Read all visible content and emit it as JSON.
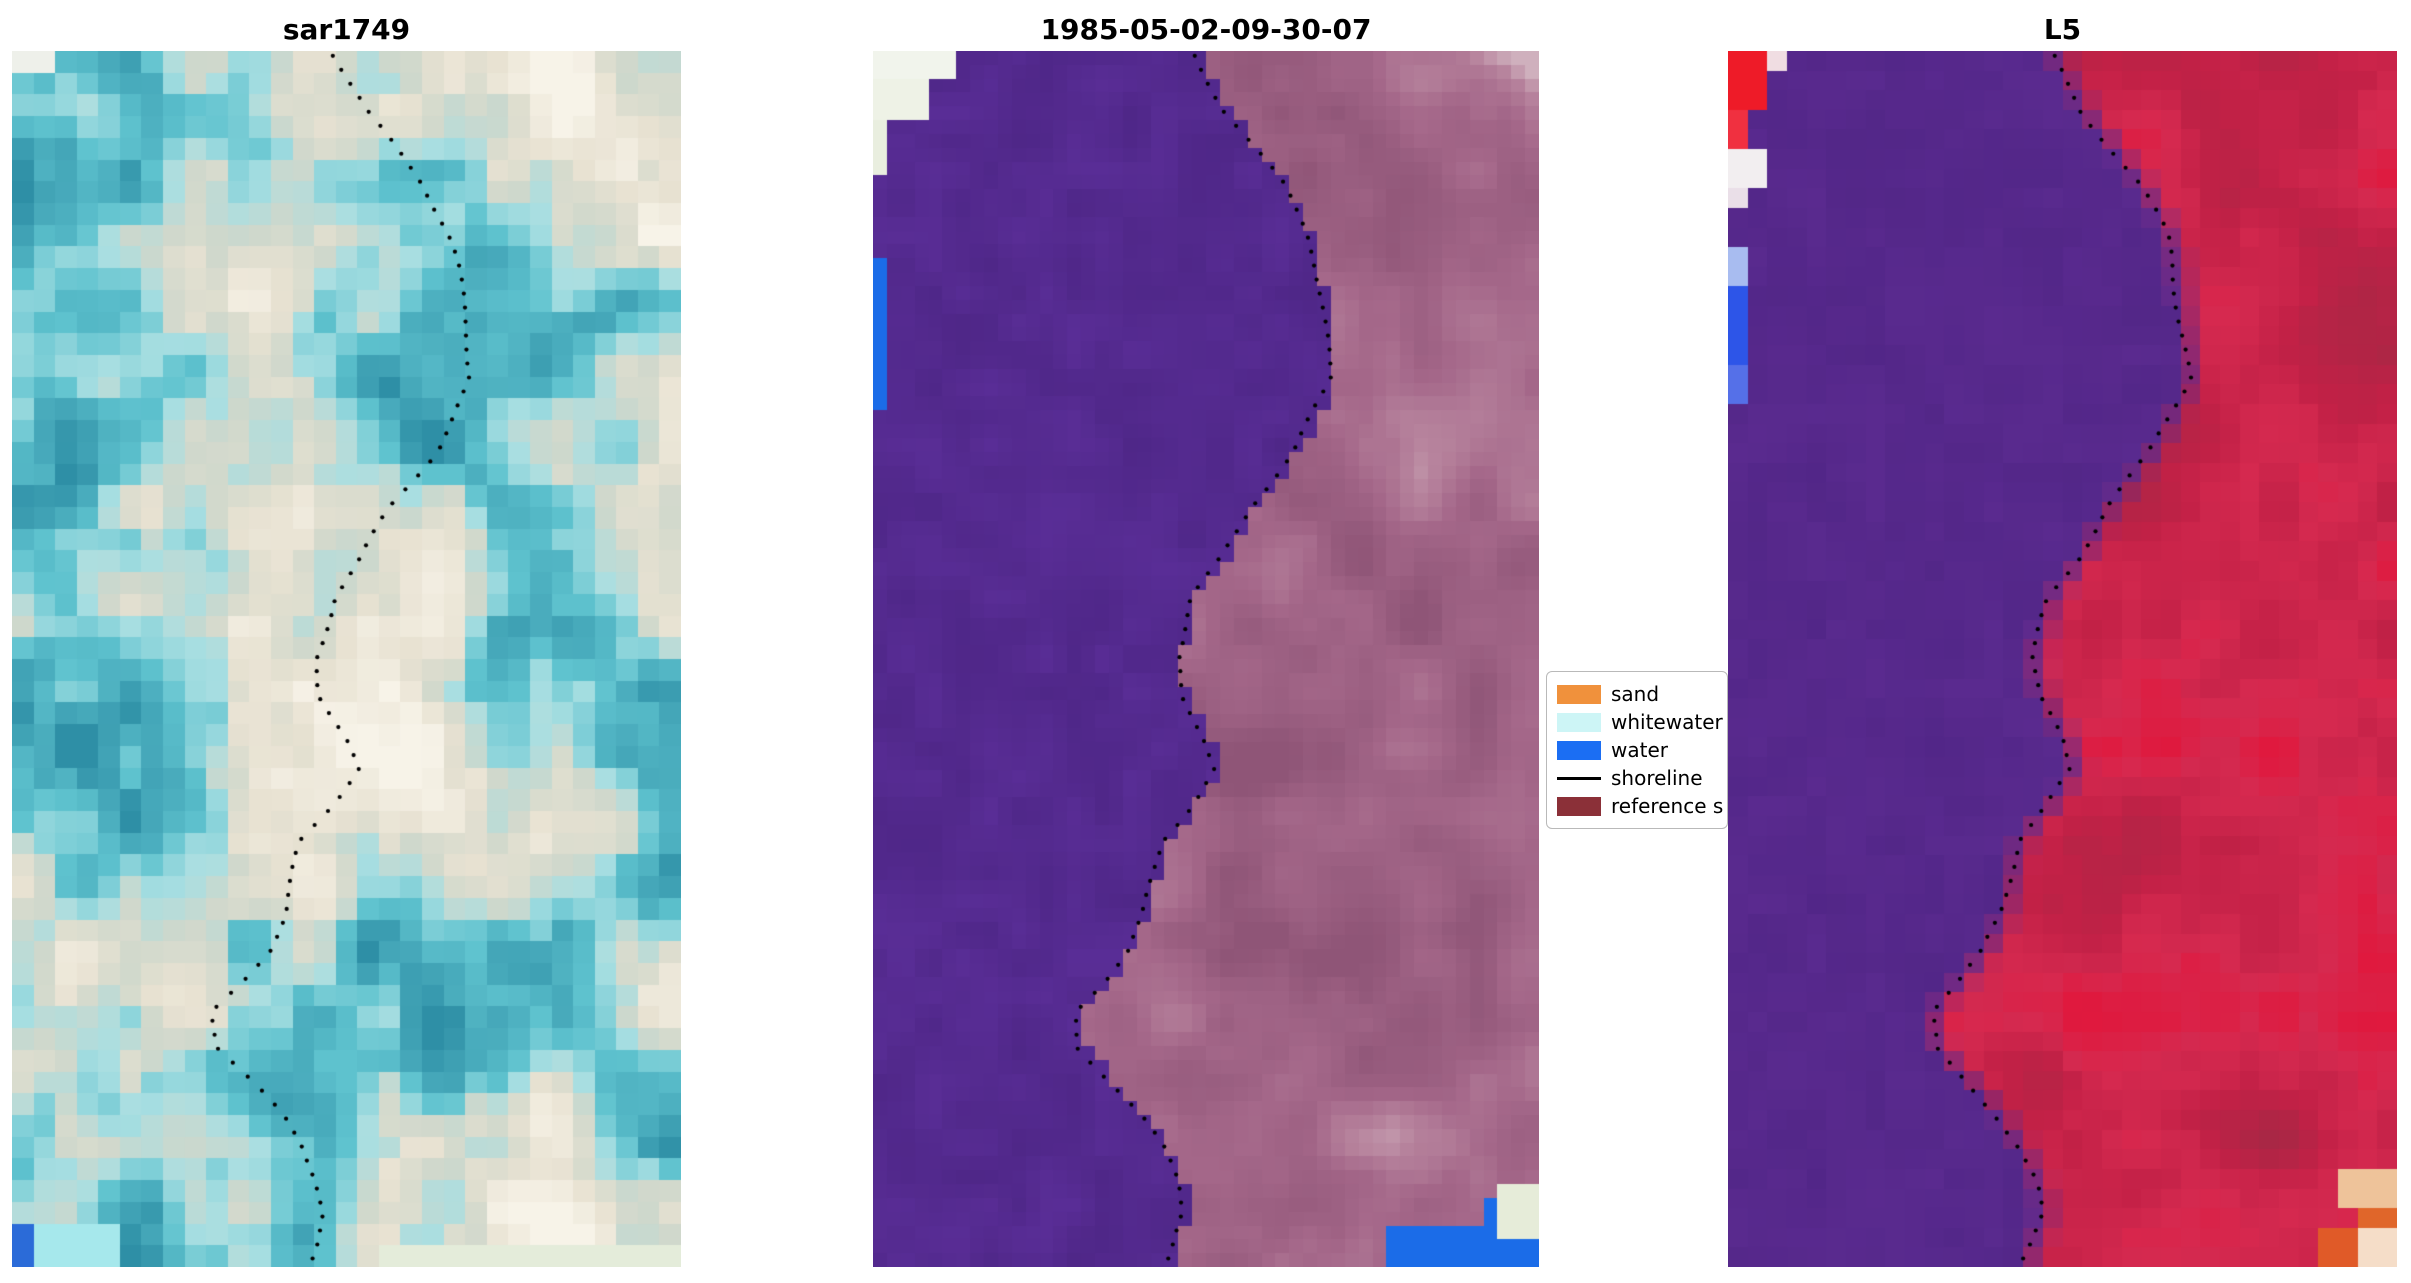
{
  "figure": {
    "background": "#ffffff"
  },
  "chart_data": {
    "type": "heatmap",
    "subtype": "satellite-shoreline-triptych",
    "panels": [
      {
        "id": "sar1749",
        "title": "sar1749",
        "type": "sar",
        "grid": [
          31,
          56
        ],
        "seed": 11,
        "palette": {
          "ramp": [
            "#2e8fa6",
            "#5fc3cf",
            "#a9dfe2",
            "#cfd8cc",
            "#e8e2d2",
            "#f7f3e8"
          ],
          "ramp_stops": [
            0,
            0.35,
            0.5,
            0.62,
            0.78,
            1
          ]
        },
        "patches": [
          {
            "u0": 0,
            "v0": 0,
            "u1": 0.05,
            "v1": 0.025,
            "color": "#eef0ea"
          },
          {
            "u0": 0,
            "v0": 0.972,
            "u1": 0.035,
            "v1": 1,
            "color": "#2b6bd8"
          },
          {
            "u0": 0.035,
            "v0": 0.96,
            "u1": 0.16,
            "v1": 1,
            "color": "#a6e8ec"
          },
          {
            "u0": 0.55,
            "v0": 0.978,
            "u1": 1,
            "v1": 1,
            "color": "#e4ecda"
          }
        ]
      },
      {
        "id": "classified",
        "title": "1985-05-02-09-30-07",
        "type": "class",
        "grid": [
          48,
          88
        ],
        "seed": 22,
        "palette": {
          "ramp": [
            "#8f5577",
            "#a5688a",
            "#b7839d",
            "#cfb0bd"
          ],
          "ramp_stops": [
            0,
            0.45,
            0.8,
            1
          ],
          "water_overlay": "#5a2e97",
          "water_overlay_dark": "#4f2788"
        },
        "patches": [
          {
            "u0": 0,
            "v0": 0,
            "u1": 0.135,
            "v1": 0.022,
            "color": "#f1f4ec"
          },
          {
            "u0": 0,
            "v0": 0,
            "u1": 0.075,
            "v1": 0.055,
            "color": "#eef2e6"
          },
          {
            "u0": 0,
            "v0": 0.055,
            "u1": 0.03,
            "v1": 0.1,
            "color": "#e9eedf"
          },
          {
            "u0": 0,
            "v0": 0.168,
            "u1": 0.018,
            "v1": 0.3,
            "color": "#1b6ce8"
          },
          {
            "u0": 0.94,
            "v0": 0.93,
            "u1": 1,
            "v1": 0.972,
            "color": "#e6ecd9"
          },
          {
            "u0": 0.78,
            "v0": 0.968,
            "u1": 1,
            "v1": 1,
            "color": "#1b6ce8"
          },
          {
            "u0": 0.92,
            "v0": 0.948,
            "u1": 1,
            "v1": 0.968,
            "color": "#1b6ce8"
          }
        ]
      },
      {
        "id": "L5",
        "title": "L5",
        "type": "l5",
        "grid": [
          34,
          62
        ],
        "seed": 33,
        "palette": {
          "ramp": [
            "#a62845",
            "#c32147",
            "#d62a50",
            "#e0193e"
          ],
          "ramp_stops": [
            0,
            0.45,
            0.75,
            1
          ],
          "water_overlay": "#5b2b90",
          "water_overlay_dark": "#4d2483"
        },
        "patches": [
          {
            "u0": 0.955,
            "v0": 0.975,
            "u1": 1,
            "v1": 1,
            "color": "#f5ddc8"
          },
          {
            "u0": 0.93,
            "v0": 0.955,
            "u1": 1,
            "v1": 1,
            "color": "#e0662a"
          },
          {
            "u0": 0.88,
            "v0": 0.96,
            "u1": 0.93,
            "v1": 1,
            "color": "#e05a28"
          },
          {
            "u0": 0.9,
            "v0": 0.92,
            "u1": 1,
            "v1": 0.955,
            "color": "#eec39a"
          },
          {
            "u0": 0,
            "v0": 0,
            "u1": 0.045,
            "v1": 0.042,
            "color": "#ee1b28"
          },
          {
            "u0": 0,
            "v0": 0.042,
            "u1": 0.028,
            "v1": 0.075,
            "color": "#f03040"
          },
          {
            "u0": 0.045,
            "v0": 0,
            "u1": 0.075,
            "v1": 0.022,
            "color": "#f0dde2"
          },
          {
            "u0": 0,
            "v0": 0.075,
            "u1": 0.05,
            "v1": 0.105,
            "color": "#f2eef0"
          },
          {
            "u0": 0,
            "v0": 0.105,
            "u1": 0.022,
            "v1": 0.135,
            "color": "#eadfe8"
          },
          {
            "u0": 0,
            "v0": 0.155,
            "u1": 0.022,
            "v1": 0.2,
            "color": "#a8bcf0"
          },
          {
            "u0": 0,
            "v0": 0.2,
            "u1": 0.022,
            "v1": 0.265,
            "color": "#2d55e8"
          },
          {
            "u0": 0,
            "v0": 0.265,
            "u1": 0.018,
            "v1": 0.295,
            "color": "#5570e8"
          }
        ]
      }
    ],
    "legend": {
      "entries": [
        {
          "label": "sand",
          "type": "patch",
          "color": "#f0913c"
        },
        {
          "label": "whitewater",
          "type": "patch",
          "color": "#cdf5f6"
        },
        {
          "label": "water",
          "type": "patch",
          "color": "#1b6ef3"
        },
        {
          "label": "shoreline",
          "type": "line",
          "color": "#000000"
        },
        {
          "label": "reference s",
          "type": "patch",
          "color": "#8b3038"
        }
      ]
    },
    "shoreline_path": [
      [
        0,
        0.48
      ],
      [
        0.05,
        0.53
      ],
      [
        0.11,
        0.615
      ],
      [
        0.15,
        0.655
      ],
      [
        0.17,
        0.665
      ],
      [
        0.22,
        0.675
      ],
      [
        0.27,
        0.688
      ],
      [
        0.3,
        0.66
      ],
      [
        0.33,
        0.632
      ],
      [
        0.375,
        0.565
      ],
      [
        0.42,
        0.52
      ],
      [
        0.45,
        0.48
      ],
      [
        0.5,
        0.455
      ],
      [
        0.53,
        0.462
      ],
      [
        0.565,
        0.5
      ],
      [
        0.59,
        0.515
      ],
      [
        0.62,
        0.478
      ],
      [
        0.65,
        0.432
      ],
      [
        0.68,
        0.42
      ],
      [
        0.71,
        0.408
      ],
      [
        0.74,
        0.382
      ],
      [
        0.765,
        0.345
      ],
      [
        0.79,
        0.302
      ],
      [
        0.82,
        0.31
      ],
      [
        0.85,
        0.362
      ],
      [
        0.875,
        0.402
      ],
      [
        0.9,
        0.432
      ],
      [
        0.93,
        0.458
      ],
      [
        0.955,
        0.468
      ],
      [
        0.98,
        0.455
      ],
      [
        1.0,
        0.44
      ]
    ]
  }
}
